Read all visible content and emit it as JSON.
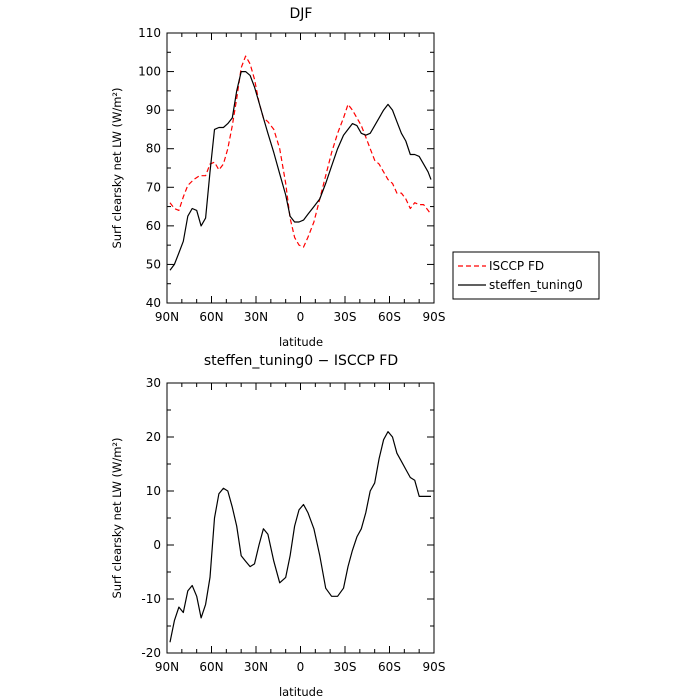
{
  "chart_data": [
    {
      "type": "line",
      "title": "DJF",
      "xlabel": "latitude",
      "ylabel": "Surf clearsky net LW (W/m²)",
      "x_ticks": [
        "90N",
        "60N",
        "30N",
        "0",
        "30S",
        "60S",
        "90S"
      ],
      "x_tick_values": [
        90,
        60,
        30,
        0,
        -30,
        -60,
        -90
      ],
      "xlim": [
        90,
        -90
      ],
      "ylim": [
        40,
        110
      ],
      "y_ticks": [
        40,
        50,
        60,
        70,
        80,
        90,
        100,
        110
      ],
      "legend_position": "outside-right",
      "series": [
        {
          "name": "ISCCP FD",
          "color": "#ff0000",
          "dash": "dashed",
          "x": [
            88,
            85,
            82,
            79,
            76,
            72,
            68,
            64,
            61,
            58,
            55,
            52,
            49,
            46,
            43,
            40,
            37,
            34,
            31,
            28,
            25,
            22,
            18,
            14,
            10,
            7,
            4,
            1,
            -2,
            -5,
            -9,
            -13,
            -17,
            -21,
            -25,
            -29,
            -32,
            -35,
            -38,
            -41,
            -44,
            -47,
            -50,
            -53,
            -56,
            -59,
            -62,
            -65,
            -68,
            -71,
            -74,
            -77,
            -80,
            -83,
            -86,
            -88
          ],
          "y": [
            66,
            64.5,
            64,
            67.5,
            70.5,
            72,
            73,
            73,
            76,
            76.5,
            74.5,
            76,
            80,
            86,
            93,
            101,
            104,
            102,
            98,
            92,
            88,
            87,
            85,
            80,
            71,
            62,
            57,
            55,
            54.5,
            57,
            61,
            67,
            73,
            79,
            84,
            88,
            91.5,
            90,
            88,
            86,
            83,
            80,
            77,
            76,
            74,
            72,
            71,
            68.5,
            68.5,
            67,
            64.5,
            66,
            65.5,
            65.5,
            64,
            63
          ]
        },
        {
          "name": "steffen_tuning0",
          "color": "#000000",
          "dash": "solid",
          "x": [
            88,
            85,
            82,
            79,
            76,
            73,
            70,
            67,
            64,
            61,
            58,
            55,
            52,
            49,
            46,
            43,
            40,
            37,
            34,
            31,
            28,
            25,
            22,
            18,
            14,
            10,
            7,
            4,
            1,
            -2,
            -5,
            -9,
            -13,
            -17,
            -21,
            -25,
            -29,
            -32,
            -35,
            -38,
            -41,
            -44,
            -47,
            -50,
            -53,
            -56,
            -59,
            -62,
            -65,
            -68,
            -71,
            -74,
            -77,
            -80,
            -83,
            -86,
            -88
          ],
          "y": [
            48.5,
            50,
            53,
            56,
            62.5,
            64.5,
            64,
            60,
            62,
            74,
            85,
            85.5,
            85.5,
            86.5,
            88,
            95,
            100,
            100,
            99,
            96,
            92,
            88,
            84,
            79,
            73.5,
            68,
            62.5,
            61,
            61,
            61.5,
            63,
            65,
            67,
            71,
            75.5,
            80,
            83.5,
            85,
            86.5,
            86,
            84,
            83.5,
            84,
            86,
            88,
            90,
            91.5,
            90,
            87,
            84,
            82,
            78.5,
            78.5,
            78,
            76,
            74,
            72
          ]
        }
      ]
    },
    {
      "type": "line",
      "title": "steffen_tuning0 − ISCCP FD",
      "xlabel": "latitude",
      "ylabel": "Surf clearsky net LW (W/m²)",
      "x_ticks": [
        "90N",
        "60N",
        "30N",
        "0",
        "30S",
        "60S",
        "90S"
      ],
      "x_tick_values": [
        90,
        60,
        30,
        0,
        -30,
        -60,
        -90
      ],
      "xlim": [
        90,
        -90
      ],
      "ylim": [
        -20,
        30
      ],
      "y_ticks": [
        -20,
        -10,
        0,
        10,
        20,
        30
      ],
      "series": [
        {
          "name": "",
          "color": "#000000",
          "dash": "solid",
          "x": [
            88,
            85,
            82,
            79,
            76,
            73,
            70,
            67,
            64,
            61,
            58,
            55,
            52,
            49,
            46,
            43,
            40,
            37,
            34,
            31,
            28,
            25,
            22,
            18,
            14,
            10,
            7,
            4,
            1,
            -2,
            -5,
            -9,
            -13,
            -17,
            -21,
            -25,
            -29,
            -32,
            -35,
            -38,
            -41,
            -44,
            -47,
            -50,
            -53,
            -56,
            -59,
            -62,
            -65,
            -68,
            -71,
            -74,
            -77,
            -80,
            -83,
            -86,
            -88
          ],
          "y": [
            -18,
            -14,
            -11.5,
            -12.5,
            -8.5,
            -7.5,
            -9.5,
            -13.5,
            -11,
            -6,
            5,
            9.5,
            10.5,
            10,
            7,
            3.5,
            -2,
            -3,
            -4,
            -3.5,
            0,
            3,
            2,
            -3,
            -7,
            -6,
            -2,
            3.5,
            6.5,
            7.5,
            6,
            3,
            -2,
            -8,
            -9.5,
            -9.5,
            -8,
            -4,
            -1,
            1.5,
            3,
            6,
            10,
            11.5,
            16,
            19.5,
            21,
            20,
            17,
            15.5,
            14,
            12.5,
            12,
            9,
            9,
            9,
            9
          ]
        }
      ]
    }
  ]
}
